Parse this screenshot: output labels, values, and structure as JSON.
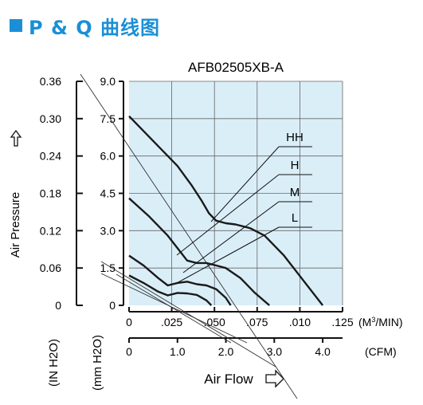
{
  "header": {
    "title": "P & Q 曲线图"
  },
  "chart_data": {
    "type": "line",
    "title": "AFB02505XB-A",
    "ylabel": "Air Pressure",
    "xlabel": "Air Flow",
    "y_axes": [
      {
        "unit_label": "(IN H2O)",
        "ticks": [
          "0.36",
          "0.30",
          "0.24",
          "0.18",
          "0.12",
          "0.06",
          "0"
        ],
        "range": [
          0,
          0.36
        ]
      },
      {
        "unit_label": "(mm H2O)",
        "ticks": [
          "9.0",
          "7.5",
          "6.0",
          "4.5",
          "3.0",
          "1.5",
          "0"
        ],
        "range": [
          0,
          9.0
        ]
      }
    ],
    "x_axes": [
      {
        "unit_label": "(M3/MIN)",
        "ticks": [
          "0",
          ".025",
          ".050",
          ".075",
          ".010",
          ".125"
        ],
        "range": [
          0,
          0.125
        ]
      },
      {
        "unit_label": "(CFM)",
        "ticks": [
          "0",
          "1.0",
          "2.0",
          "3.0",
          "4.0"
        ],
        "range": [
          0,
          4.41
        ]
      }
    ],
    "grid": true,
    "series": [
      {
        "name": "HH",
        "x_cfm": [
          0,
          0.5,
          1.0,
          1.3,
          1.5,
          1.65,
          1.8,
          2.0,
          2.2,
          2.5,
          2.8,
          3.2,
          3.6,
          4.0
        ],
        "y_mmh2o": [
          7.6,
          6.6,
          5.6,
          4.8,
          4.2,
          3.7,
          3.4,
          3.3,
          3.25,
          3.1,
          2.8,
          2.0,
          1.0,
          0
        ]
      },
      {
        "name": "H",
        "x_cfm": [
          0,
          0.4,
          0.8,
          1.0,
          1.2,
          1.4,
          1.6,
          1.8,
          2.0,
          2.3,
          2.6,
          2.9
        ],
        "y_mmh2o": [
          4.3,
          3.6,
          2.8,
          2.3,
          1.8,
          1.7,
          1.7,
          1.6,
          1.5,
          1.1,
          0.5,
          0
        ]
      },
      {
        "name": "M",
        "x_cfm": [
          0,
          0.3,
          0.6,
          0.8,
          1.0,
          1.2,
          1.4,
          1.6,
          1.8,
          2.0,
          2.1
        ],
        "y_mmh2o": [
          2.0,
          1.6,
          1.1,
          0.8,
          0.9,
          0.95,
          0.85,
          0.8,
          0.65,
          0.3,
          0
        ]
      },
      {
        "name": "L",
        "x_cfm": [
          0,
          0.3,
          0.6,
          0.8,
          1.0,
          1.2,
          1.4,
          1.6,
          1.7
        ],
        "y_mmh2o": [
          1.2,
          0.9,
          0.55,
          0.4,
          0.5,
          0.48,
          0.42,
          0.2,
          0
        ]
      }
    ]
  }
}
